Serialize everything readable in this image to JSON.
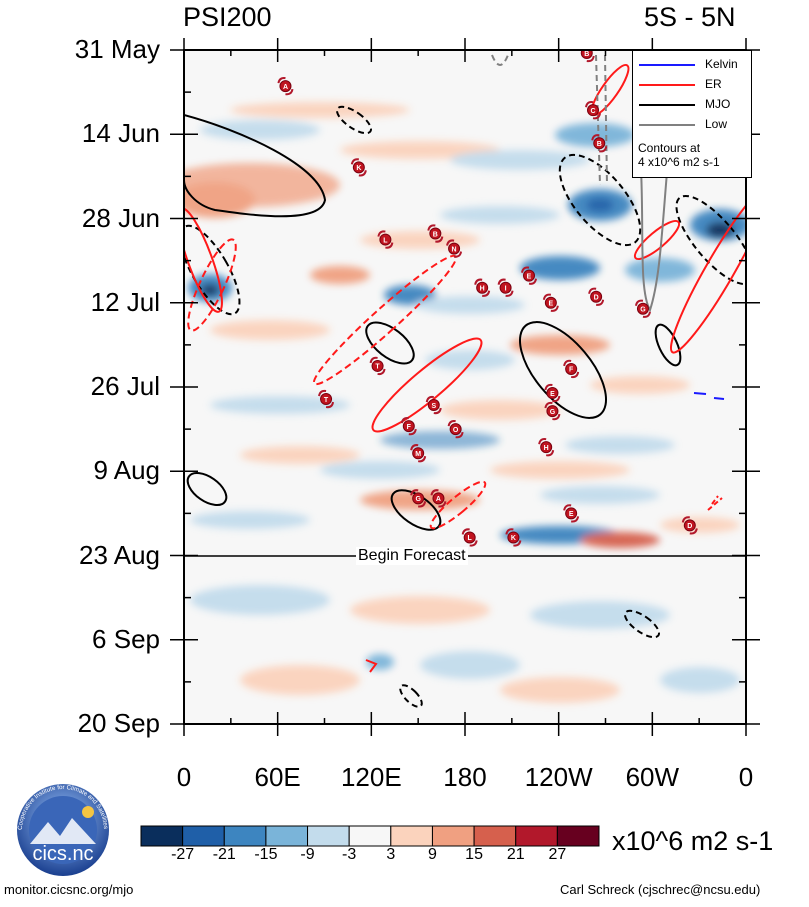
{
  "titles": {
    "left": "PSI200",
    "right": "5S - 5N"
  },
  "footer": {
    "left": "monitor.cicsnc.org/mjo",
    "right": "Carl Schreck (cjschrec@ncsu.edu)"
  },
  "logo": {
    "text": "cics.nc",
    "ring_text": "Cooperative Institute for Climate and Satellites"
  },
  "forecast_label": "Begin Forecast",
  "chart_data": {
    "type": "heatmap",
    "title": "PSI200",
    "region": "5S - 5N",
    "x_ticks": [
      "0",
      "60E",
      "120E",
      "180",
      "120W",
      "60W",
      "0"
    ],
    "x_values": [
      0,
      60,
      120,
      180,
      240,
      300,
      360
    ],
    "y_ticks": [
      "31 May",
      "14 Jun",
      "28 Jun",
      "12 Jul",
      "26 Jul",
      "9 Aug",
      "23 Aug",
      "6 Sep",
      "20 Sep"
    ],
    "y_day_offsets": [
      0,
      14,
      28,
      42,
      56,
      70,
      84,
      98,
      112
    ],
    "forecast_start": "23 Aug",
    "colorbar": {
      "unit": "x10^6 m2 s-1",
      "levels": [
        "-27",
        "-21",
        "-15",
        "-9",
        "-3",
        "3",
        "9",
        "15",
        "21",
        "27"
      ],
      "colors": [
        "#0a2e5c",
        "#1f5fa8",
        "#3d85c0",
        "#7ab4d9",
        "#c3dcec",
        "#f7f7f7",
        "#fbd3bd",
        "#f0a081",
        "#d6604d",
        "#b2182b",
        "#67001f"
      ]
    },
    "legend": [
      {
        "name": "Kelvin",
        "color": "#1a1aff"
      },
      {
        "name": "ER",
        "color": "#ff1a1a"
      },
      {
        "name": "MJO",
        "color": "#000000"
      },
      {
        "name": "Low",
        "color": "#808080"
      }
    ],
    "legend_note": [
      "Contours at",
      "4 x10^6 m2 s-1"
    ],
    "storms": [
      {
        "label": "A",
        "lon": 65,
        "day": 6
      },
      {
        "label": "K",
        "lon": 112,
        "day": 19.5
      },
      {
        "label": "L",
        "lon": 129,
        "day": 31.5
      },
      {
        "label": "B",
        "lon": 161,
        "day": 30.5
      },
      {
        "label": "N",
        "lon": 173,
        "day": 33
      },
      {
        "label": "E",
        "lon": 221,
        "day": 37.5
      },
      {
        "label": "H",
        "lon": 191,
        "day": 39.5
      },
      {
        "label": "I",
        "lon": 206,
        "day": 39.5
      },
      {
        "label": "E",
        "lon": 235,
        "day": 42
      },
      {
        "label": "D",
        "lon": 264,
        "day": 41
      },
      {
        "label": "G",
        "lon": 294,
        "day": 43
      },
      {
        "label": "T",
        "lon": 124,
        "day": 52.5
      },
      {
        "label": "T",
        "lon": 91,
        "day": 58
      },
      {
        "label": "S",
        "lon": 160,
        "day": 59
      },
      {
        "label": "F",
        "lon": 144,
        "day": 62.5
      },
      {
        "label": "O",
        "lon": 174,
        "day": 63
      },
      {
        "label": "F",
        "lon": 248,
        "day": 53
      },
      {
        "label": "E",
        "lon": 236,
        "day": 57
      },
      {
        "label": "G",
        "lon": 236,
        "day": 60
      },
      {
        "label": "H",
        "lon": 232,
        "day": 66
      },
      {
        "label": "M",
        "lon": 150,
        "day": 67
      },
      {
        "label": "G",
        "lon": 150,
        "day": 74.5
      },
      {
        "label": "A",
        "lon": 163,
        "day": 74.5
      },
      {
        "label": "E",
        "lon": 248,
        "day": 77
      },
      {
        "label": "L",
        "lon": 183,
        "day": 81
      },
      {
        "label": "K",
        "lon": 211,
        "day": 81
      },
      {
        "label": "D",
        "lon": 324,
        "day": 79
      },
      {
        "label": "B",
        "lon": 258,
        "day": 0.5
      },
      {
        "label": "C",
        "lon": 262,
        "day": 10
      },
      {
        "label": "B",
        "lon": 266,
        "day": 15.5
      }
    ]
  }
}
